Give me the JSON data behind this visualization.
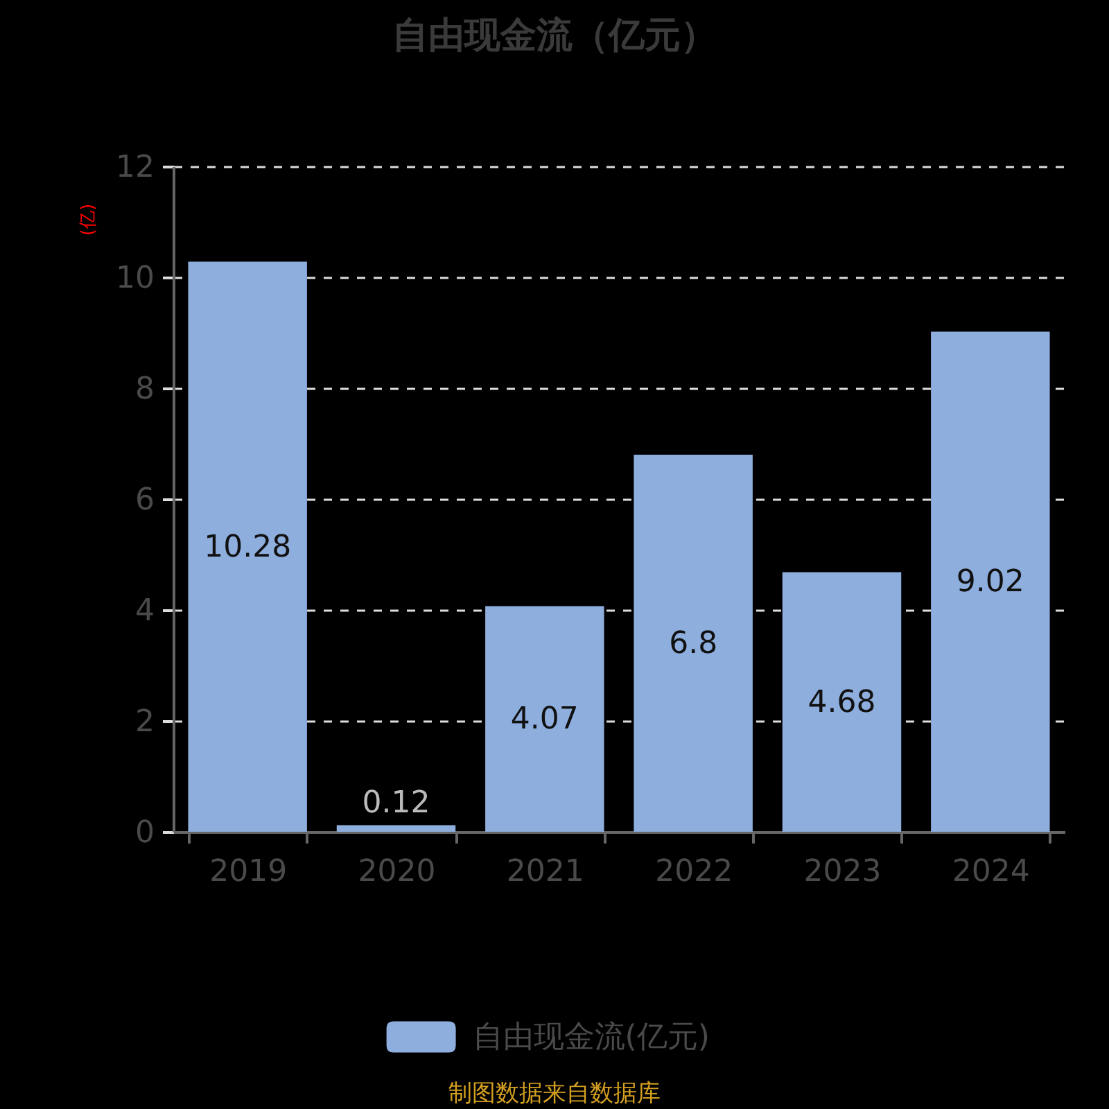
{
  "chart_data": {
    "type": "bar",
    "title": "自由现金流（亿元）",
    "ylabel": "(亿)",
    "categories": [
      "2019",
      "2020",
      "2021",
      "2022",
      "2023",
      "2024"
    ],
    "series": [
      {
        "name": "自由现金流(亿元)",
        "color": "#8eaede",
        "values": [
          10.28,
          0.12,
          4.07,
          6.8,
          4.68,
          9.02
        ]
      }
    ],
    "ylim": [
      0,
      12
    ],
    "yticks": [
      0,
      2,
      4,
      6,
      8,
      10,
      12
    ],
    "grid": "y",
    "legend": "bottom",
    "data_labels": true,
    "annotations": [
      "制图数据来自数据库"
    ]
  }
}
